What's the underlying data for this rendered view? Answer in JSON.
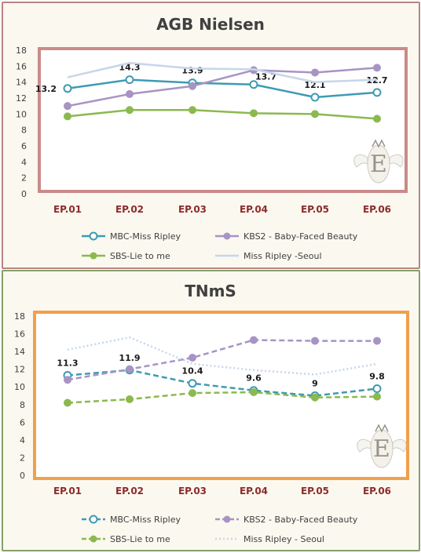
{
  "chart_data": [
    {
      "type": "line",
      "title": "AGB Nielsen",
      "categories": [
        "EP.01",
        "EP.02",
        "EP.03",
        "EP.04",
        "EP.05",
        "EP.06"
      ],
      "ylim": [
        0,
        18
      ],
      "yticks": [
        0,
        2,
        4,
        6,
        8,
        10,
        12,
        14,
        16,
        18
      ],
      "series": [
        {
          "name": "MBC-Miss Ripley",
          "values": [
            13.2,
            14.3,
            13.9,
            13.7,
            12.1,
            12.7
          ],
          "color": "#3e9bb3",
          "marker": "open-circle",
          "dash": "solid",
          "labels": true
        },
        {
          "name": "KBS2 - Baby-Faced Beauty",
          "values": [
            11.0,
            12.5,
            13.5,
            15.5,
            15.2,
            15.8
          ],
          "color": "#a794c4",
          "marker": "circle",
          "dash": "solid",
          "labels": false
        },
        {
          "name": "SBS-Lie to me",
          "values": [
            9.7,
            10.5,
            10.5,
            10.1,
            10.0,
            9.4
          ],
          "color": "#8cb94f",
          "marker": "circle",
          "dash": "solid",
          "labels": false
        },
        {
          "name": "Miss Ripley -Seoul",
          "values": [
            14.6,
            16.4,
            15.7,
            15.6,
            14.0,
            14.3
          ],
          "color": "#c6d6ea",
          "marker": "none",
          "dash": "solid",
          "labels": false
        }
      ],
      "plot_border_color": "#c98b8a",
      "grid": false,
      "legend_position": "bottom"
    },
    {
      "type": "line",
      "title": "TNmS",
      "categories": [
        "EP.01",
        "EP.02",
        "EP.03",
        "EP.04",
        "EP.05",
        "EP.06"
      ],
      "ylim": [
        0,
        18
      ],
      "yticks": [
        0,
        2,
        4,
        6,
        8,
        10,
        12,
        14,
        16,
        18
      ],
      "series": [
        {
          "name": "MBC-Miss Ripley",
          "values": [
            11.3,
            11.9,
            10.4,
            9.6,
            9.0,
            9.8
          ],
          "display_labels": [
            "11.3",
            "11.9",
            "10.4",
            "9.6",
            "9",
            "9.8"
          ],
          "color": "#3e9bb3",
          "marker": "open-circle",
          "dash": "dashed",
          "labels": true
        },
        {
          "name": "KBS2 - Baby-Faced Beauty",
          "values": [
            10.8,
            12.0,
            13.3,
            15.3,
            15.2,
            15.2
          ],
          "color": "#a794c4",
          "marker": "circle",
          "dash": "dashed",
          "labels": false
        },
        {
          "name": "SBS-Lie to me",
          "values": [
            8.2,
            8.6,
            9.3,
            9.4,
            8.8,
            8.9
          ],
          "color": "#8cb94f",
          "marker": "circle",
          "dash": "dashed",
          "labels": false
        },
        {
          "name": "Miss Ripley - Seoul",
          "values": [
            14.2,
            15.6,
            12.6,
            11.9,
            11.4,
            12.6
          ],
          "color": "#c6d6ea",
          "marker": "none",
          "dash": "dotted",
          "labels": false
        }
      ],
      "plot_border_color": "#f0a04b",
      "grid": false,
      "legend_position": "bottom"
    }
  ],
  "watermark": {
    "icon": "winged-e-logo-icon"
  }
}
